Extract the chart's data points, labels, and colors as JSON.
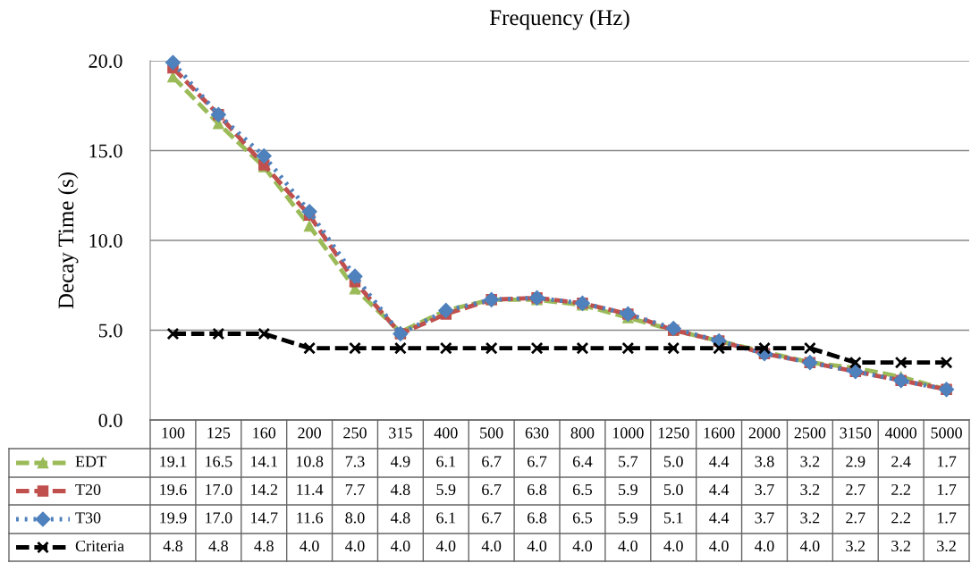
{
  "chart_data": {
    "type": "line",
    "title": "Frequency (Hz)",
    "ylabel": "Decay Time (s)",
    "categories": [
      "100",
      "125",
      "160",
      "200",
      "250",
      "315",
      "400",
      "500",
      "630",
      "800",
      "1000",
      "1250",
      "1600",
      "2000",
      "2500",
      "3150",
      "4000",
      "5000"
    ],
    "series": [
      {
        "name": "EDT",
        "color": "#9bbb59",
        "marker": "triangle",
        "line_style": "dashed",
        "values": [
          19.1,
          16.5,
          14.1,
          10.8,
          7.3,
          4.9,
          6.1,
          6.7,
          6.7,
          6.4,
          5.7,
          5.0,
          4.4,
          3.8,
          3.2,
          2.9,
          2.4,
          1.7
        ],
        "value_labels": [
          "19.1",
          "16.5",
          "14.1",
          "10.8",
          "7.3",
          "4.9",
          "6.1",
          "6.7",
          "6.7",
          "6.4",
          "5.7",
          "5.0",
          "4.4",
          "3.8",
          "3.2",
          "2.9",
          "2.4",
          "1.7"
        ]
      },
      {
        "name": "T20",
        "color": "#c0504d",
        "marker": "square",
        "line_style": "dashed",
        "values": [
          19.6,
          17.0,
          14.2,
          11.4,
          7.7,
          4.8,
          5.9,
          6.7,
          6.8,
          6.5,
          5.9,
          5.0,
          4.4,
          3.7,
          3.2,
          2.7,
          2.2,
          1.7
        ],
        "value_labels": [
          "19.6",
          "17.0",
          "14.2",
          "11.4",
          "7.7",
          "4.8",
          "5.9",
          "6.7",
          "6.8",
          "6.5",
          "5.9",
          "5.0",
          "4.4",
          "3.7",
          "3.2",
          "2.7",
          "2.2",
          "1.7"
        ]
      },
      {
        "name": "T30",
        "color": "#4f81bd",
        "marker": "diamond",
        "line_style": "dotted",
        "values": [
          19.9,
          17.0,
          14.7,
          11.6,
          8.0,
          4.8,
          6.1,
          6.7,
          6.8,
          6.5,
          5.9,
          5.1,
          4.4,
          3.7,
          3.2,
          2.7,
          2.2,
          1.7
        ],
        "value_labels": [
          "19.9",
          "17.0",
          "14.7",
          "11.6",
          "8.0",
          "4.8",
          "6.1",
          "6.7",
          "6.8",
          "6.5",
          "5.9",
          "5.1",
          "4.4",
          "3.7",
          "3.2",
          "2.7",
          "2.2",
          "1.7"
        ]
      },
      {
        "name": "Criteria",
        "color": "#000000",
        "marker": "cross",
        "line_style": "dashed",
        "values": [
          4.8,
          4.8,
          4.8,
          4.0,
          4.0,
          4.0,
          4.0,
          4.0,
          4.0,
          4.0,
          4.0,
          4.0,
          4.0,
          4.0,
          4.0,
          3.2,
          3.2,
          3.2
        ],
        "value_labels": [
          "4.8",
          "4.8",
          "4.8",
          "4.0",
          "4.0",
          "4.0",
          "4.0",
          "4.0",
          "4.0",
          "4.0",
          "4.0",
          "4.0",
          "4.0",
          "4.0",
          "4.0",
          "3.2",
          "3.2",
          "3.2"
        ]
      }
    ],
    "ylim": [
      0,
      20
    ],
    "yticks": [
      {
        "value": 0,
        "label": "0.0"
      },
      {
        "value": 5,
        "label": "5.0"
      },
      {
        "value": 10,
        "label": "10.0"
      },
      {
        "value": 15,
        "label": "15.0"
      },
      {
        "value": 20,
        "label": "20.0"
      }
    ],
    "grid": "y",
    "legend": "bottom"
  }
}
